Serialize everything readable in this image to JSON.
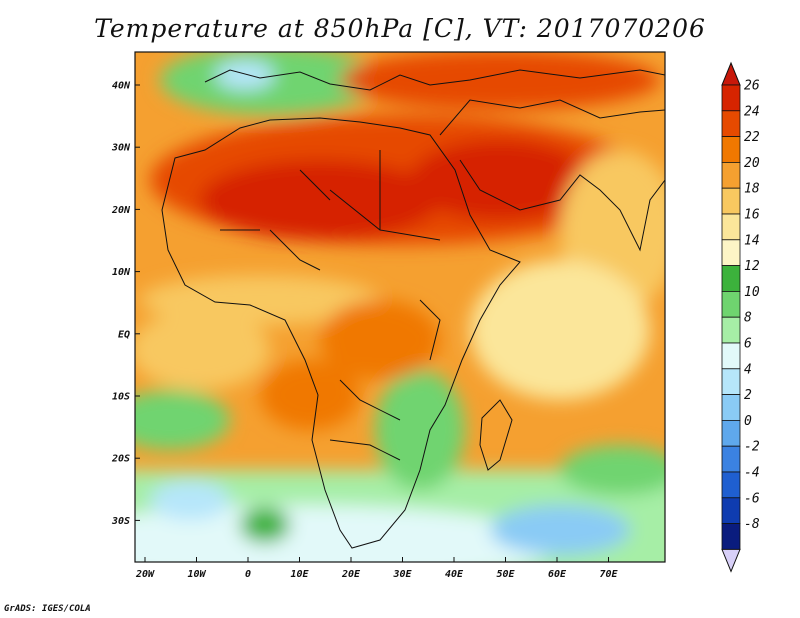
{
  "title": "Temperature at 850hPa [C], VT: 2017070206",
  "credit": "GrADS: IGES/COLA",
  "map": {
    "lat_labels": [
      "40N",
      "30N",
      "20N",
      "10N",
      "EQ",
      "10S",
      "20S",
      "30S"
    ],
    "lon_labels": [
      "20W",
      "10W",
      "0",
      "10E",
      "20E",
      "30E",
      "40E",
      "50E",
      "60E",
      "70E"
    ]
  },
  "colorbar": {
    "labels": [
      "26",
      "24",
      "22",
      "20",
      "18",
      "16",
      "14",
      "12",
      "10",
      "8",
      "6",
      "4",
      "2",
      "0",
      "-2",
      "-4",
      "-6",
      "-8"
    ],
    "colors": [
      "#d62400",
      "#e64a00",
      "#f07800",
      "#f5a030",
      "#f8c860",
      "#fbe69a",
      "#fdf5c6",
      "#3cb23c",
      "#6fd46f",
      "#a6eea6",
      "#e2f9f9",
      "#b6e6fa",
      "#8acbf5",
      "#5fa8ec",
      "#3b82e2",
      "#1f5fd0",
      "#0f3cb0",
      "#0a1c7e"
    ],
    "over_color": "#c8180a",
    "under_color": "#d8d0f8"
  }
}
